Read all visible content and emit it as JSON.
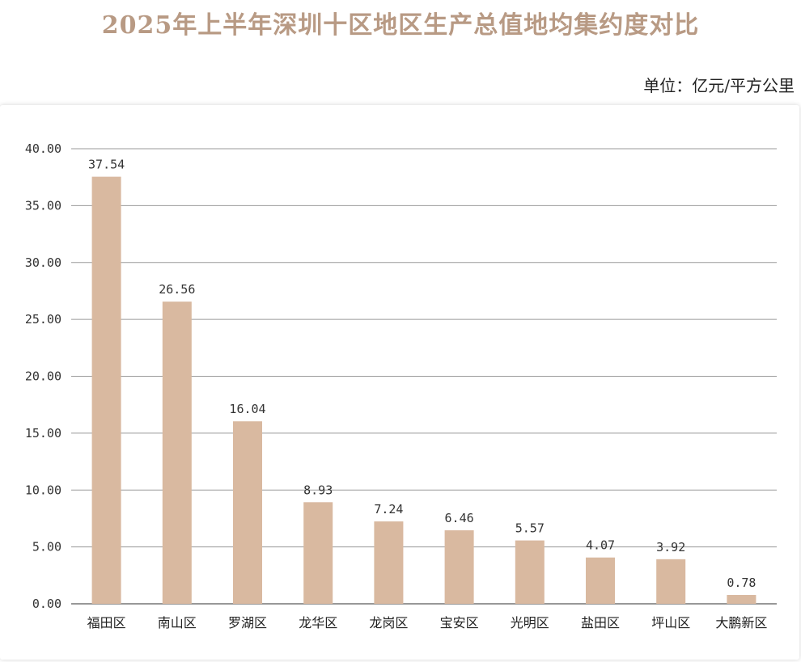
{
  "chart_data": {
    "type": "bar",
    "title": "2025年上半年深圳十区地区生产总值地均集约度对比",
    "unit_label": "单位：亿元/平方公里",
    "categories": [
      "福田区",
      "南山区",
      "罗湖区",
      "龙华区",
      "龙岗区",
      "宝安区",
      "光明区",
      "盐田区",
      "坪山区",
      "大鹏新区"
    ],
    "values": [
      37.54,
      26.56,
      16.04,
      8.93,
      7.24,
      6.46,
      5.57,
      4.07,
      3.92,
      0.78
    ],
    "data_labels": [
      "37.54",
      "26.56",
      "16.04",
      "8.93",
      "7.24",
      "6.46",
      "5.57",
      "4.07",
      "3.92",
      "0.78"
    ],
    "yticks": [
      "0.00",
      "5.00",
      "10.00",
      "15.00",
      "20.00",
      "25.00",
      "30.00",
      "35.00",
      "40.00"
    ],
    "ylim": [
      0,
      40
    ],
    "grid": true,
    "bar_color": "#d9b9a0"
  }
}
